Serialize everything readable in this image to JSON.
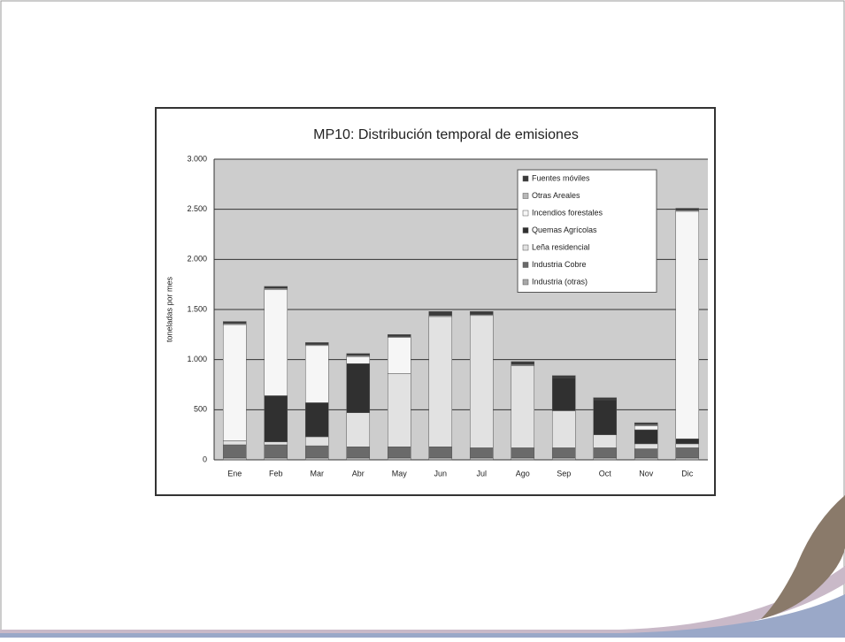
{
  "chart_data": {
    "type": "stacked-bar",
    "title": "MP10: Distribución temporal de emisiones",
    "y_label": "toneladas por mes",
    "categories": [
      "Ene",
      "Feb",
      "Mar",
      "Abr",
      "May",
      "Jun",
      "Jul",
      "Ago",
      "Sep",
      "Oct",
      "Nov",
      "Dic"
    ],
    "series": [
      {
        "name": "Fuentes móviles",
        "color": "#3a3a3a",
        "values": [
          20,
          20,
          20,
          20,
          20,
          40,
          30,
          30,
          20,
          20,
          20,
          20
        ]
      },
      {
        "name": "Otras Areales",
        "color": "#b8b8b8",
        "values": [
          10,
          10,
          10,
          10,
          10,
          10,
          10,
          10,
          0,
          0,
          10,
          10
        ]
      },
      {
        "name": "Incendios forestales",
        "color": "#f6f6f6",
        "values": [
          1160,
          1060,
          570,
          70,
          360,
          0,
          0,
          0,
          0,
          0,
          40,
          2270
        ]
      },
      {
        "name": "Quemas Agrícolas",
        "color": "#303030",
        "values": [
          0,
          460,
          340,
          490,
          0,
          0,
          0,
          0,
          330,
          350,
          140,
          50
        ]
      },
      {
        "name": "Leña residencial",
        "color": "#e2e2e2",
        "values": [
          40,
          30,
          90,
          340,
          730,
          1300,
          1320,
          820,
          370,
          130,
          50,
          40
        ]
      },
      {
        "name": "Industria Cobre",
        "color": "#6a6a6a",
        "values": [
          130,
          130,
          120,
          110,
          110,
          110,
          100,
          100,
          100,
          100,
          90,
          100
        ]
      },
      {
        "name": "Industria (otras)",
        "color": "#a8a8a8",
        "values": [
          20,
          20,
          20,
          20,
          20,
          20,
          20,
          20,
          20,
          20,
          20,
          20
        ]
      }
    ],
    "ylim": [
      0,
      3000
    ],
    "yticks": [
      {
        "value": 0,
        "label": "0"
      },
      {
        "value": 500,
        "label": "500"
      },
      {
        "value": 1000,
        "label": "1.000"
      },
      {
        "value": 1500,
        "label": "1.500"
      },
      {
        "value": 2000,
        "label": "2.000"
      },
      {
        "value": 2500,
        "label": "2.500"
      },
      {
        "value": 3000,
        "label": "3.000"
      }
    ],
    "grid": true,
    "legend": "top-right"
  }
}
